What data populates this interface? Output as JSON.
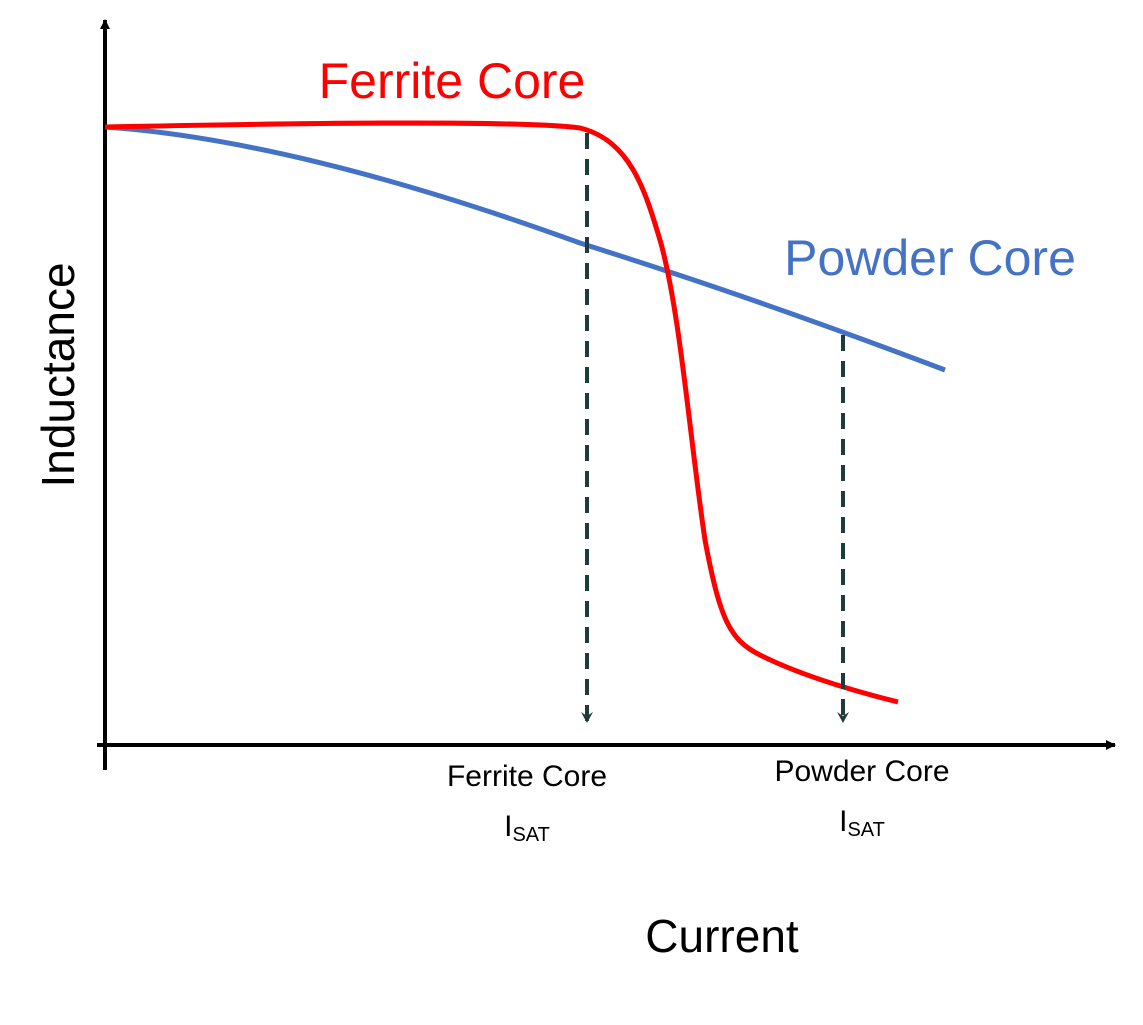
{
  "axes": {
    "y_label": "Inductance",
    "x_label": "Current"
  },
  "curves": [
    {
      "label": "Ferrite Core"
    },
    {
      "label": "Powder Core"
    }
  ],
  "markers": [
    {
      "label": "Ferrite Core",
      "symbol": "I",
      "subscript": "SAT"
    },
    {
      "label": "Powder Core",
      "symbol": "I",
      "subscript": "SAT"
    }
  ]
}
